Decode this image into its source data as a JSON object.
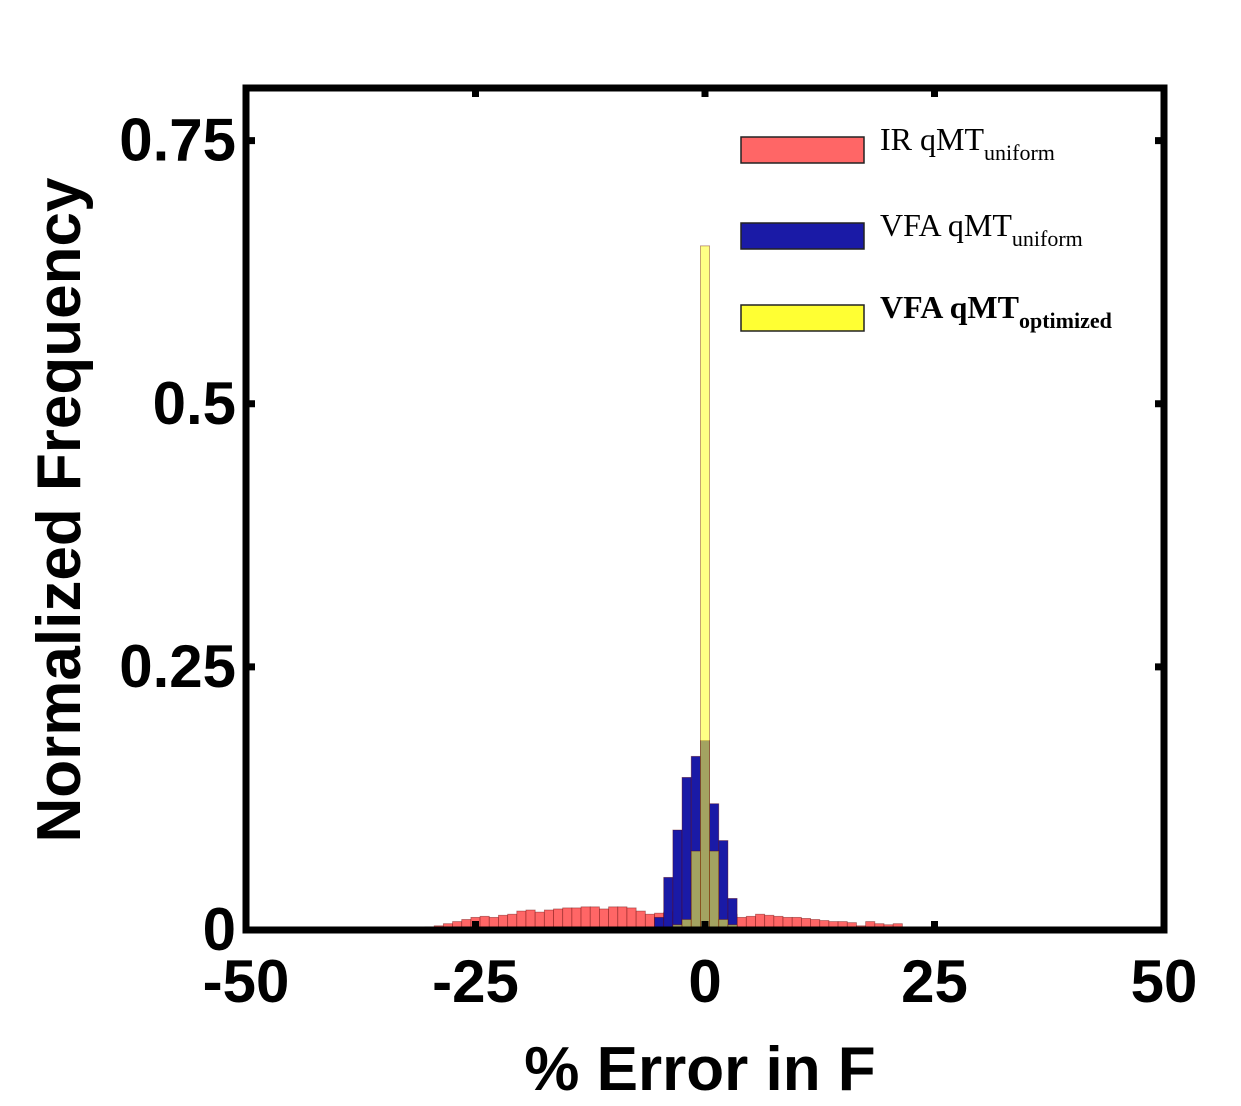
{
  "chart_data": {
    "type": "bar",
    "subtype": "overlaid-histogram",
    "title": "",
    "xlabel": "% Error in F",
    "ylabel": "Normalized Frequency",
    "xlim": [
      -50,
      50
    ],
    "ylim": [
      0,
      0.8
    ],
    "xticks": [
      -50,
      -25,
      0,
      25,
      50
    ],
    "xtick_labels": [
      "-50",
      "-25",
      "0",
      "25",
      "50"
    ],
    "yticks": [
      0,
      0.25,
      0.5,
      0.75
    ],
    "ytick_labels": [
      "0",
      "0.25",
      "0.5",
      "0.75"
    ],
    "bin_width": 1,
    "legend_position": "top-right",
    "series": [
      {
        "name": "IR qMT",
        "name_sub": "uniform",
        "bold": false,
        "color": "#ff6666",
        "opacity": 1.0,
        "bins": [
          -31,
          -30,
          -29,
          -28,
          -27,
          -26,
          -25,
          -24,
          -23,
          -22,
          -21,
          -20,
          -19,
          -18,
          -17,
          -16,
          -15,
          -14,
          -13,
          -12,
          -11,
          -10,
          -9,
          -8,
          -7,
          -6,
          -5,
          -4,
          -3,
          -2,
          -1,
          0,
          1,
          2,
          3,
          4,
          5,
          6,
          7,
          8,
          9,
          10,
          11,
          12,
          13,
          14,
          15,
          16,
          17,
          18,
          19,
          20,
          21,
          22,
          23
        ],
        "values": [
          0.002,
          0.003,
          0.004,
          0.006,
          0.008,
          0.01,
          0.012,
          0.013,
          0.012,
          0.014,
          0.015,
          0.018,
          0.019,
          0.017,
          0.019,
          0.02,
          0.021,
          0.021,
          0.022,
          0.022,
          0.02,
          0.022,
          0.022,
          0.021,
          0.018,
          0.015,
          0.016,
          0.017,
          0.018,
          0.019,
          0.019,
          0.018,
          0.017,
          0.016,
          0.015,
          0.012,
          0.013,
          0.015,
          0.014,
          0.013,
          0.012,
          0.012,
          0.011,
          0.01,
          0.009,
          0.008,
          0.008,
          0.007,
          0.004,
          0.008,
          0.006,
          0.005,
          0.006,
          0.002,
          0.001
        ]
      },
      {
        "name": "VFA qMT",
        "name_sub": "uniform",
        "bold": false,
        "color": "#1a1aa6",
        "opacity": 1.0,
        "bins": [
          -5,
          -4,
          -3,
          -2,
          -1,
          0,
          1,
          2,
          3
        ],
        "values": [
          0.012,
          0.05,
          0.095,
          0.145,
          0.165,
          0.18,
          0.12,
          0.085,
          0.03
        ]
      },
      {
        "name": "VFA qMT",
        "name_sub": "optimized",
        "bold": true,
        "color": "#ffff33",
        "opacity": 0.6,
        "bins": [
          -3,
          -2,
          -1,
          0,
          1,
          2,
          3
        ],
        "values": [
          0.005,
          0.01,
          0.075,
          0.65,
          0.075,
          0.01,
          0.005
        ]
      }
    ]
  }
}
